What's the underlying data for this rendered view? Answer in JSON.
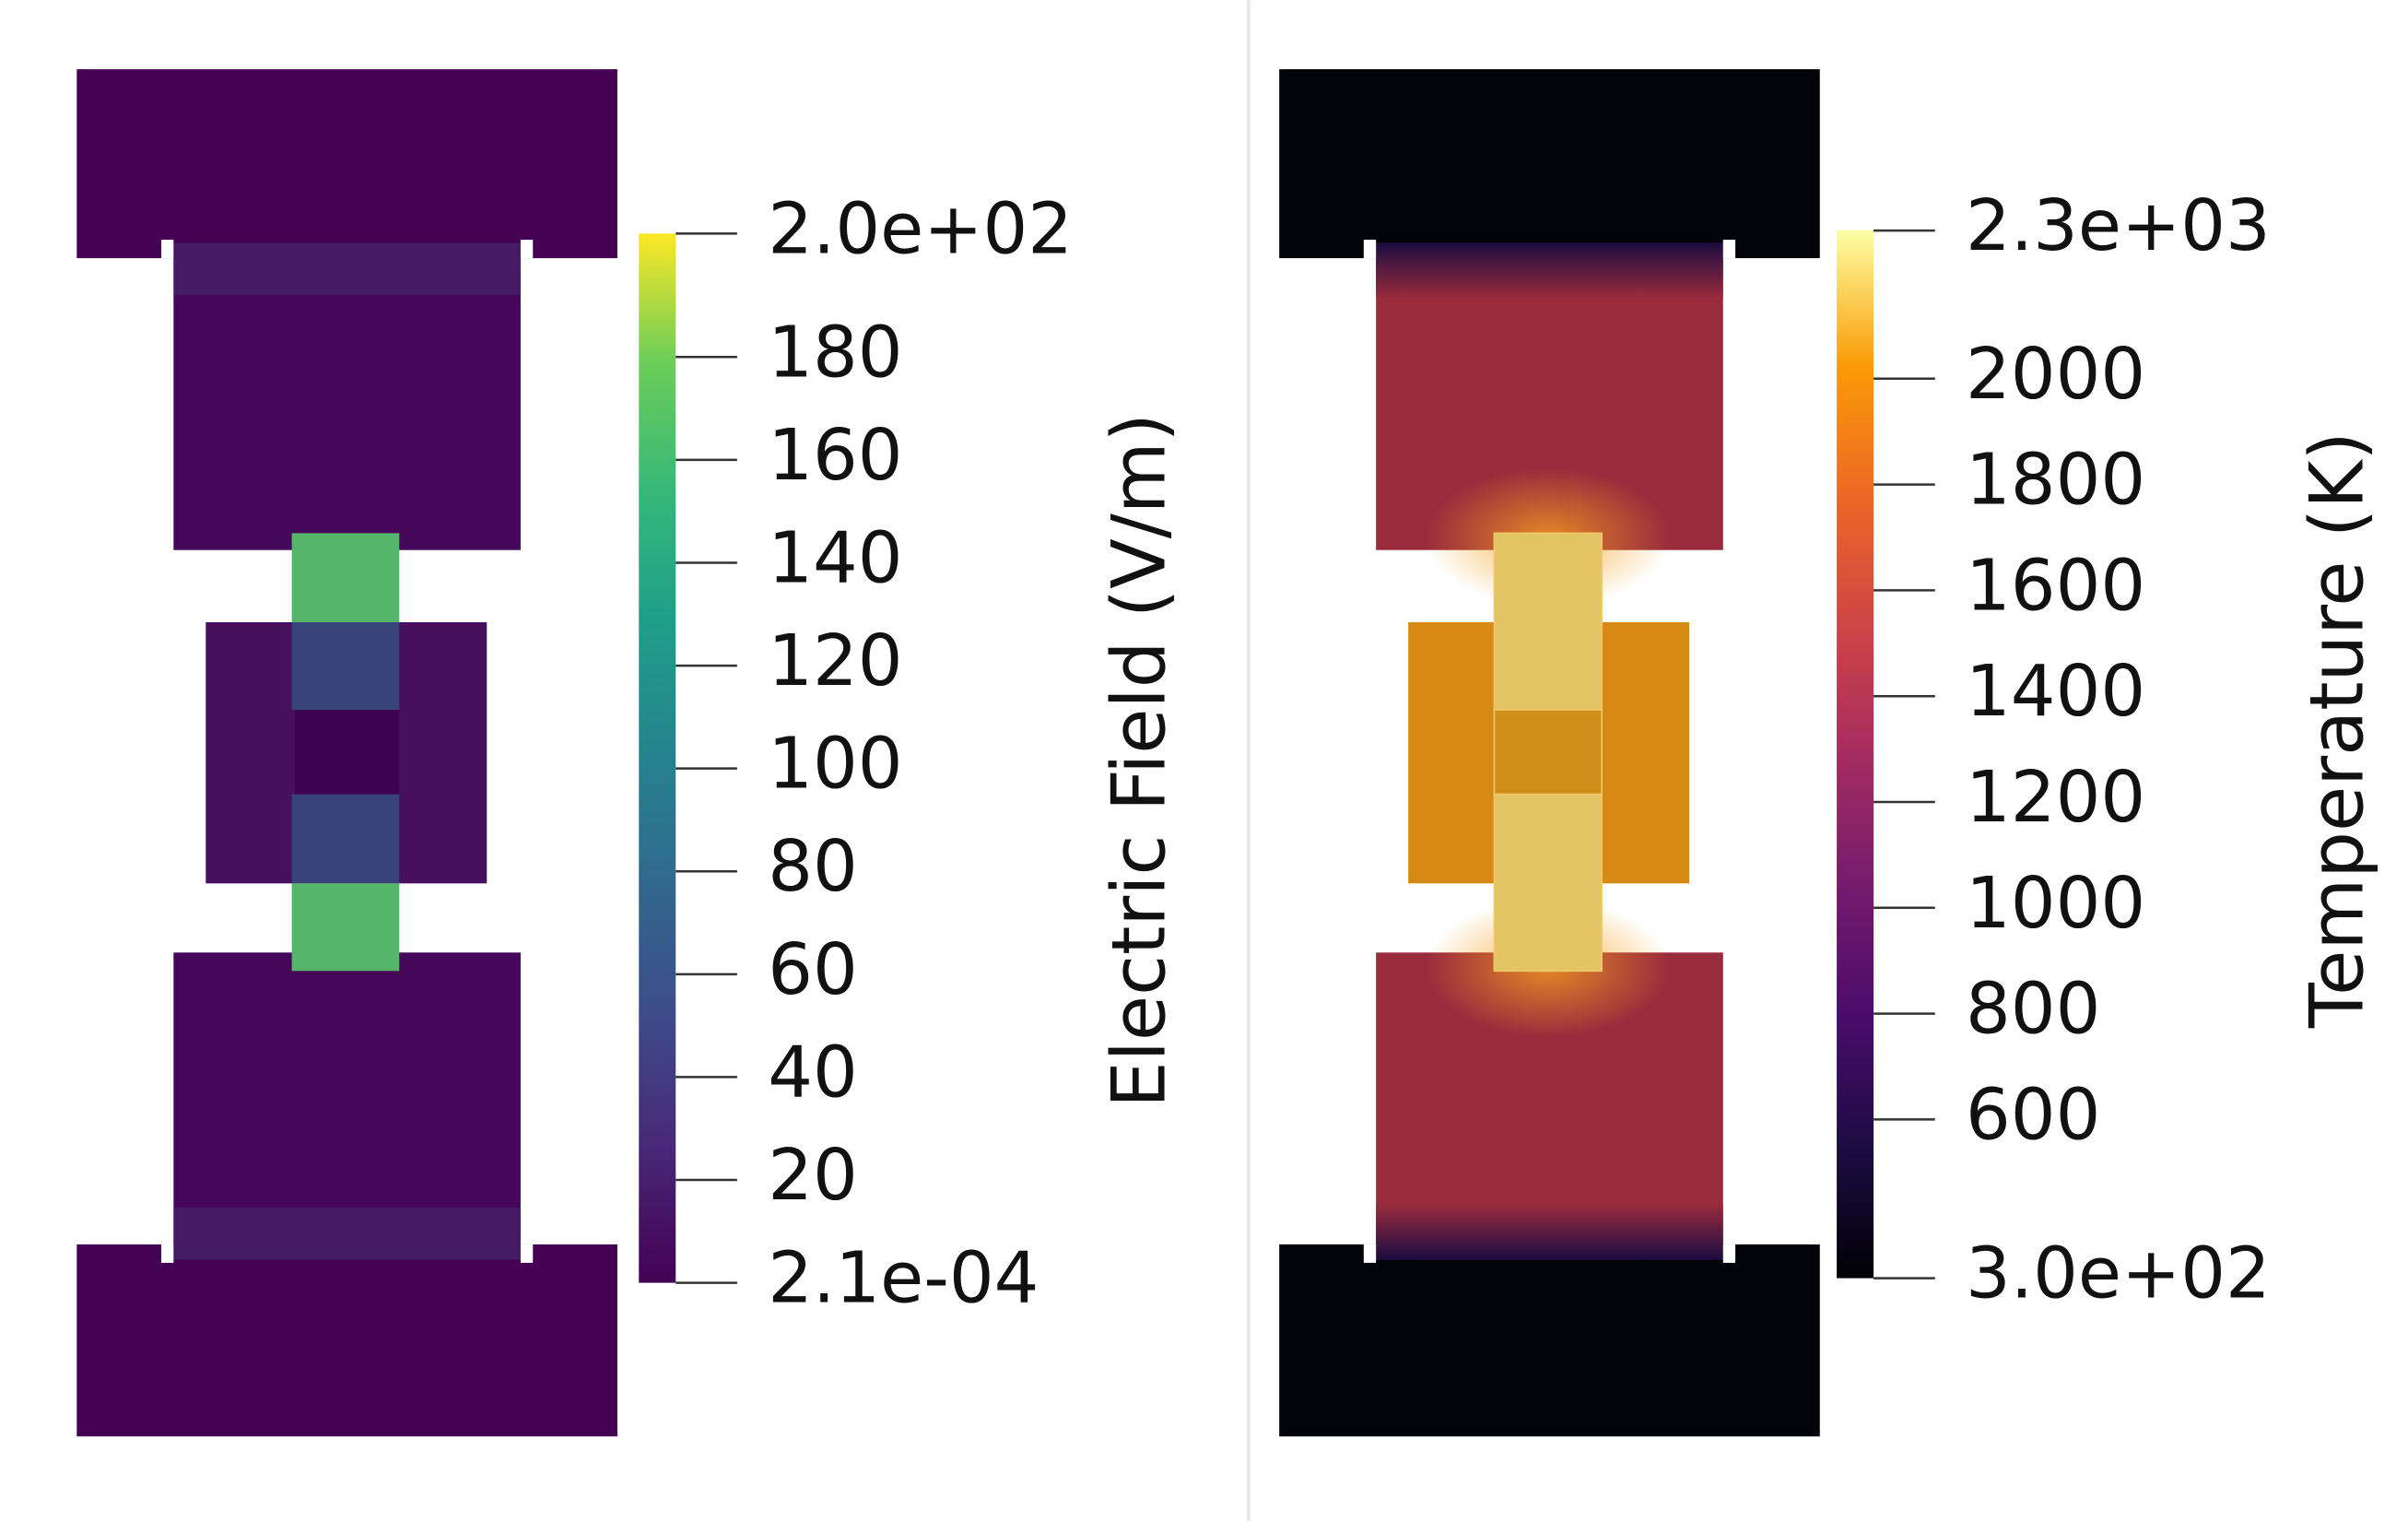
{
  "panels": [
    {
      "colorbar": {
        "title": "Electric Field (V/m)",
        "range": [
          0.00021,
          204
        ],
        "ticks": [
          {
            "value": 0.00021,
            "label": "2.1e-04"
          },
          20,
          40,
          60,
          80,
          100,
          120,
          140,
          160,
          180,
          {
            "value": 204,
            "label": "2.0e+02"
          }
        ]
      }
    },
    {
      "colorbar": {
        "title": "Temperature (K)",
        "range": [
          300,
          2280
        ],
        "ticks": [
          {
            "value": 300,
            "label": "3.0e+02"
          },
          600,
          800,
          1000,
          1200,
          1400,
          1600,
          1800,
          2000,
          {
            "value": 2280,
            "label": "2.3e+03"
          }
        ]
      }
    }
  ]
}
